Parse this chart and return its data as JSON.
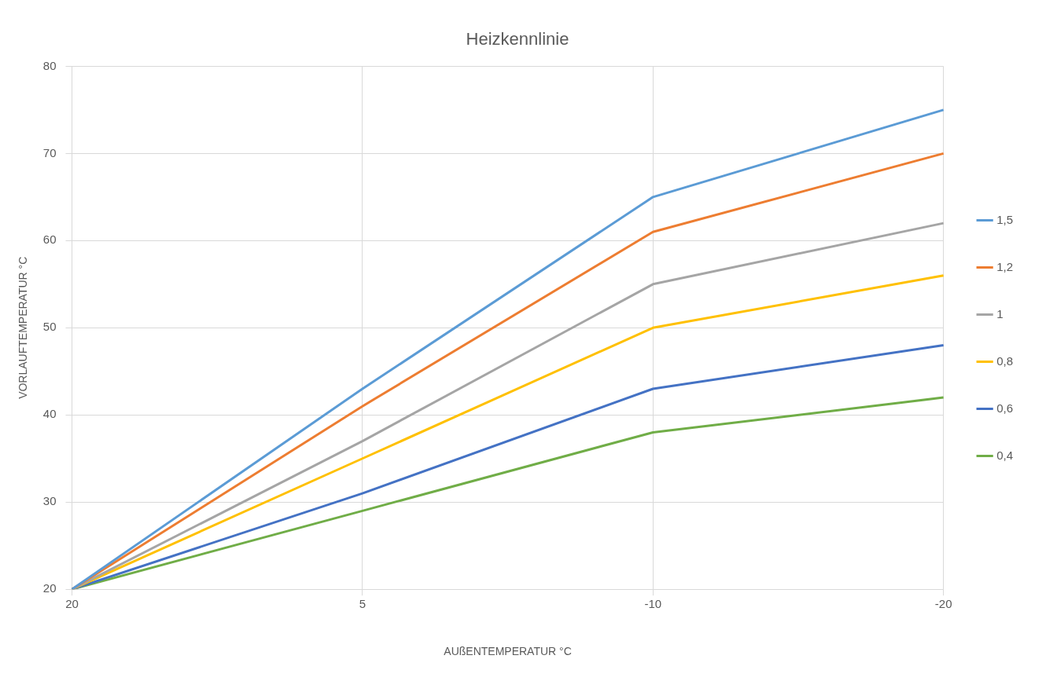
{
  "chart_data": {
    "type": "line",
    "title": "Heizkennlinie",
    "xlabel": "AUßENTEMPERATUR °C",
    "ylabel": "VORLAUFTEMPERATUR °C",
    "categories": [
      "20",
      "5",
      "-10",
      "-20"
    ],
    "series": [
      {
        "name": "1,5",
        "color": "#5b9bd5",
        "values": [
          20,
          43,
          65,
          75
        ]
      },
      {
        "name": "1,2",
        "color": "#ed7d31",
        "values": [
          20,
          41,
          61,
          70
        ]
      },
      {
        "name": "1",
        "color": "#a5a5a5",
        "values": [
          20,
          37,
          55,
          62
        ]
      },
      {
        "name": "0,8",
        "color": "#ffc000",
        "values": [
          20,
          35,
          50,
          56
        ]
      },
      {
        "name": "0,6",
        "color": "#4472c4",
        "values": [
          20,
          31,
          43,
          48
        ]
      },
      {
        "name": "0,4",
        "color": "#70ad47",
        "values": [
          20,
          29,
          38,
          42
        ]
      }
    ],
    "ylim": [
      20,
      80
    ],
    "yticks": [
      20,
      30,
      40,
      50,
      60,
      70,
      80
    ],
    "grid": true,
    "legend": "right",
    "marker": "none",
    "line_style": "solid"
  }
}
